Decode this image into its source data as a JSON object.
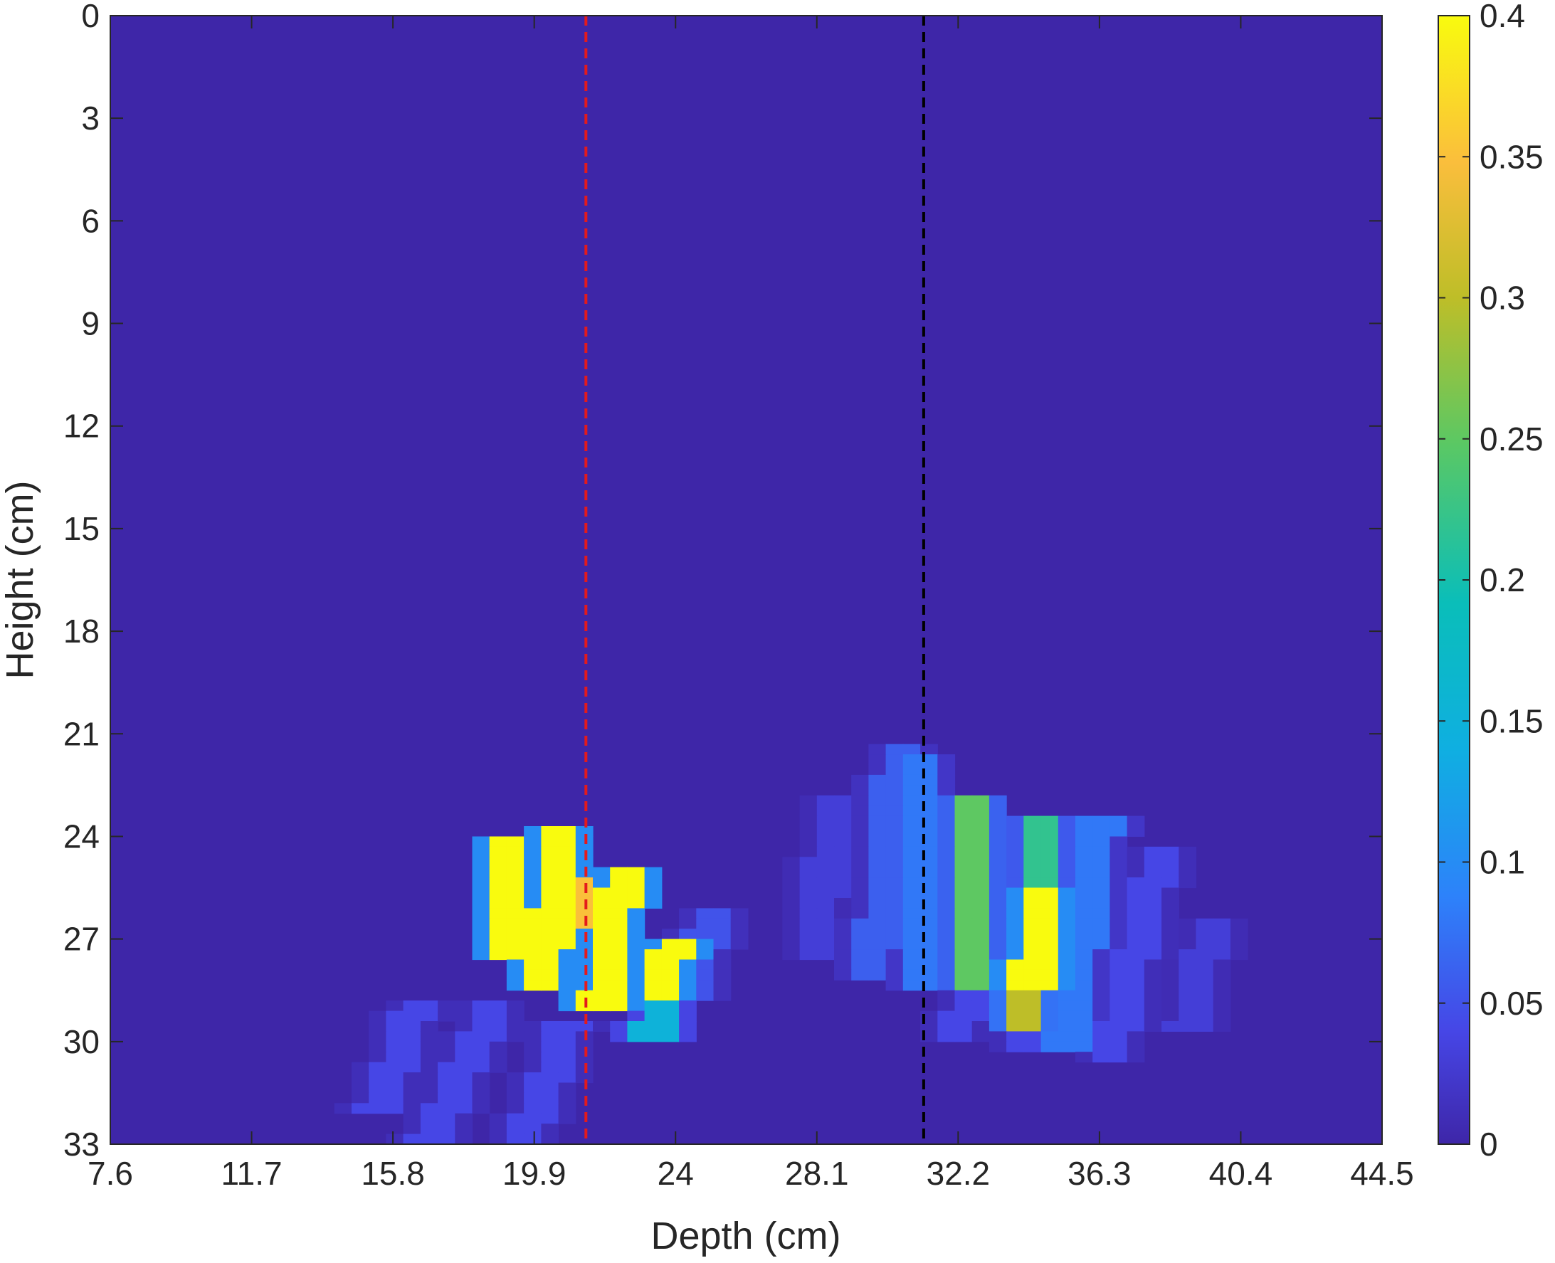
{
  "chart_data": {
    "type": "heatmap",
    "xlabel": "Depth (cm)",
    "ylabel": "Height (cm)",
    "xlim": [
      7.6,
      44.5
    ],
    "ylim": [
      0,
      33
    ],
    "y_reversed": true,
    "x_ticks": [
      "7.6",
      "11.7",
      "15.8",
      "19.9",
      "24",
      "28.1",
      "32.2",
      "36.3",
      "40.4",
      "44.5"
    ],
    "y_ticks": [
      "0",
      "3",
      "6",
      "9",
      "12",
      "15",
      "18",
      "21",
      "24",
      "27",
      "30",
      "33"
    ],
    "colorbar": {
      "colormap": "parula",
      "range": [
        0,
        0.4
      ],
      "ticks": [
        "0",
        "0.05",
        "0.1",
        "0.15",
        "0.2",
        "0.25",
        "0.3",
        "0.35",
        "0.4"
      ]
    },
    "background_value": 0.005,
    "vertical_lines": [
      {
        "x": 21.4,
        "color": "#e41a1c",
        "style": "dashed"
      },
      {
        "x": 31.2,
        "color": "#000000",
        "style": "dashed"
      }
    ],
    "streaks": [
      {
        "x_top": 19.1,
        "x_bottom": 19.0,
        "y_top": 23.9,
        "y_bottom": 27.6,
        "value": 0.4
      },
      {
        "x_top": 20.6,
        "x_bottom": 20.2,
        "y_top": 23.7,
        "y_bottom": 28.6,
        "value": 0.4
      },
      {
        "x_top": 22.5,
        "x_bottom": 21.8,
        "y_top": 25.0,
        "y_bottom": 29.0,
        "value": 0.4
      },
      {
        "x_top": 24.0,
        "x_bottom": 23.5,
        "y_top": 27.0,
        "y_bottom": 28.8,
        "value": 0.4
      },
      {
        "x_top": 21.1,
        "x_bottom": 21.2,
        "y_top": 25.2,
        "y_bottom": 26.8,
        "value": 0.35
      },
      {
        "x_top": 23.6,
        "x_bottom": 23.3,
        "y_top": 28.8,
        "y_bottom": 29.9,
        "value": 0.15
      },
      {
        "x_top": 25.0,
        "x_bottom": 24.6,
        "y_top": 26.2,
        "y_bottom": 28.7,
        "value": 0.05
      },
      {
        "x_top": 16.5,
        "x_bottom": 15.3,
        "y_top": 28.8,
        "y_bottom": 32.2,
        "value": 0.04
      },
      {
        "x_top": 18.8,
        "x_bottom": 16.8,
        "y_top": 28.9,
        "y_bottom": 33.0,
        "value": 0.04
      },
      {
        "x_top": 20.9,
        "x_bottom": 19.6,
        "y_top": 29.4,
        "y_bottom": 33.0,
        "value": 0.04
      },
      {
        "x_top": 28.6,
        "x_bottom": 28.1,
        "y_top": 22.7,
        "y_bottom": 27.7,
        "value": 0.03
      },
      {
        "x_top": 30.5,
        "x_bottom": 29.7,
        "y_top": 21.3,
        "y_bottom": 28.2,
        "value": 0.06
      },
      {
        "x_top": 31.3,
        "x_bottom": 31.0,
        "y_top": 21.7,
        "y_bottom": 28.6,
        "value": 0.08
      },
      {
        "x_top": 32.7,
        "x_bottom": 32.5,
        "y_top": 22.8,
        "y_bottom": 28.6,
        "value": 0.25
      },
      {
        "x_top": 34.6,
        "x_bottom": 34.3,
        "y_top": 25.6,
        "y_bottom": 28.5,
        "value": 0.4
      },
      {
        "x_top": 34.6,
        "x_bottom": 34.5,
        "y_top": 23.5,
        "y_bottom": 25.6,
        "value": 0.22
      },
      {
        "x_top": 34.3,
        "x_bottom": 34.2,
        "y_top": 28.4,
        "y_bottom": 29.7,
        "value": 0.3
      },
      {
        "x_top": 36.4,
        "x_bottom": 35.3,
        "y_top": 23.5,
        "y_bottom": 30.3,
        "value": 0.08
      },
      {
        "x_top": 38.1,
        "x_bottom": 36.6,
        "y_top": 24.2,
        "y_bottom": 30.6,
        "value": 0.04
      },
      {
        "x_top": 39.6,
        "x_bottom": 38.8,
        "y_top": 26.5,
        "y_bottom": 29.7,
        "value": 0.03
      },
      {
        "x_top": 32.7,
        "x_bottom": 32.0,
        "y_top": 28.5,
        "y_bottom": 30.0,
        "value": 0.04
      },
      {
        "x_top": 34.2,
        "x_bottom": 33.8,
        "y_top": 29.6,
        "y_bottom": 30.4,
        "value": 0.04
      }
    ]
  }
}
